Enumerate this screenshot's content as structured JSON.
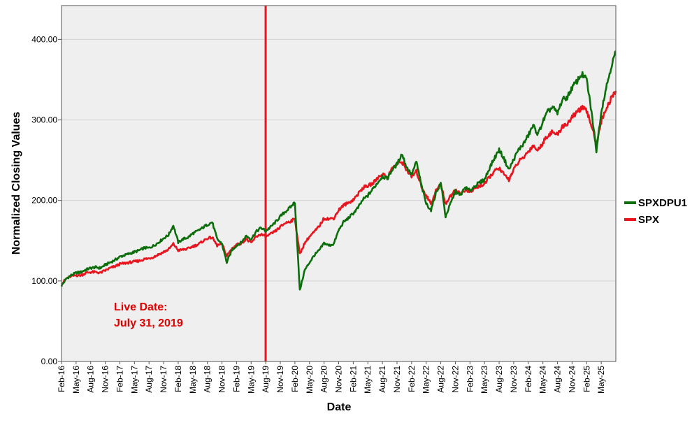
{
  "chart_data": {
    "type": "line",
    "xlabel": "Date",
    "ylabel": "Normalized Closing Values",
    "ylim": [
      0,
      442
    ],
    "y_ticks": [
      0,
      100,
      200,
      300,
      400
    ],
    "y_tick_labels": [
      "0.00",
      "100.00",
      "200.00",
      "300.00",
      "400.00"
    ],
    "x_tick_labels": [
      "Feb-16",
      "May-16",
      "Aug-16",
      "Nov-16",
      "Feb-17",
      "May-17",
      "Aug-17",
      "Nov-17",
      "Feb-18",
      "May-18",
      "Aug-18",
      "Nov-18",
      "Feb-19",
      "May-19",
      "Aug-19",
      "Nov-19",
      "Feb-20",
      "May-20",
      "Aug-20",
      "Nov-20",
      "Feb-21",
      "May-21",
      "Aug-21",
      "Nov-21",
      "Feb-22",
      "May-22",
      "Aug-22",
      "Nov-22",
      "Feb-23",
      "May-23",
      "Aug-23",
      "Nov-23",
      "Feb-24",
      "May-24",
      "Aug-24",
      "Nov-24",
      "Feb-25",
      "May-25"
    ],
    "x_start": "2016-02",
    "x_end": "2025-08",
    "grid": "horizontal",
    "legend_position": "right",
    "plot_background": "#efefef",
    "series": [
      {
        "name": "SPXDPU1",
        "color": "#0b6e0b",
        "points": [
          [
            "2016-02",
            94
          ],
          [
            "2016-03",
            103
          ],
          [
            "2016-04",
            107
          ],
          [
            "2016-05",
            110
          ],
          [
            "2016-06",
            111
          ],
          [
            "2016-07",
            114
          ],
          [
            "2016-08",
            116
          ],
          [
            "2016-09",
            117
          ],
          [
            "2016-10",
            116
          ],
          [
            "2016-11",
            120
          ],
          [
            "2016-12",
            123
          ],
          [
            "2017-01",
            126
          ],
          [
            "2017-02",
            130
          ],
          [
            "2017-03",
            132
          ],
          [
            "2017-04",
            134
          ],
          [
            "2017-05",
            136
          ],
          [
            "2017-06",
            138
          ],
          [
            "2017-07",
            141
          ],
          [
            "2017-08",
            141
          ],
          [
            "2017-09",
            144
          ],
          [
            "2017-10",
            148
          ],
          [
            "2017-11",
            153
          ],
          [
            "2017-12",
            157
          ],
          [
            "2018-01",
            169
          ],
          [
            "2018-02",
            148
          ],
          [
            "2018-03",
            152
          ],
          [
            "2018-04",
            154
          ],
          [
            "2018-05",
            159
          ],
          [
            "2018-06",
            162
          ],
          [
            "2018-07",
            166
          ],
          [
            "2018-08",
            170
          ],
          [
            "2018-09",
            173
          ],
          [
            "2018-10",
            152
          ],
          [
            "2018-11",
            146
          ],
          [
            "2018-12",
            123
          ],
          [
            "2019-01",
            138
          ],
          [
            "2019-02",
            144
          ],
          [
            "2019-03",
            148
          ],
          [
            "2019-04",
            156
          ],
          [
            "2019-05",
            152
          ],
          [
            "2019-06",
            161
          ],
          [
            "2019-07",
            166
          ],
          [
            "2019-08",
            162
          ],
          [
            "2019-09",
            167
          ],
          [
            "2019-10",
            173
          ],
          [
            "2019-11",
            180
          ],
          [
            "2019-12",
            186
          ],
          [
            "2020-01",
            191
          ],
          [
            "2020-02",
            198
          ],
          [
            "2020-03",
            88
          ],
          [
            "2020-04",
            113
          ],
          [
            "2020-05",
            123
          ],
          [
            "2020-06",
            132
          ],
          [
            "2020-07",
            138
          ],
          [
            "2020-08",
            147
          ],
          [
            "2020-09",
            144
          ],
          [
            "2020-10",
            146
          ],
          [
            "2020-11",
            163
          ],
          [
            "2020-12",
            173
          ],
          [
            "2021-01",
            178
          ],
          [
            "2021-02",
            184
          ],
          [
            "2021-03",
            191
          ],
          [
            "2021-04",
            201
          ],
          [
            "2021-05",
            206
          ],
          [
            "2021-06",
            214
          ],
          [
            "2021-07",
            222
          ],
          [
            "2021-08",
            230
          ],
          [
            "2021-09",
            227
          ],
          [
            "2021-10",
            238
          ],
          [
            "2021-11",
            245
          ],
          [
            "2021-12",
            258
          ],
          [
            "2022-01",
            241
          ],
          [
            "2022-02",
            232
          ],
          [
            "2022-03",
            248
          ],
          [
            "2022-04",
            219
          ],
          [
            "2022-05",
            196
          ],
          [
            "2022-06",
            188
          ],
          [
            "2022-07",
            209
          ],
          [
            "2022-08",
            222
          ],
          [
            "2022-09",
            180
          ],
          [
            "2022-10",
            196
          ],
          [
            "2022-11",
            211
          ],
          [
            "2022-12",
            206
          ],
          [
            "2023-01",
            216
          ],
          [
            "2023-02",
            212
          ],
          [
            "2023-03",
            218
          ],
          [
            "2023-04",
            222
          ],
          [
            "2023-05",
            226
          ],
          [
            "2023-06",
            240
          ],
          [
            "2023-07",
            252
          ],
          [
            "2023-08",
            263
          ],
          [
            "2023-09",
            252
          ],
          [
            "2023-10",
            238
          ],
          [
            "2023-11",
            251
          ],
          [
            "2023-12",
            263
          ],
          [
            "2024-01",
            270
          ],
          [
            "2024-02",
            281
          ],
          [
            "2024-03",
            293
          ],
          [
            "2024-04",
            282
          ],
          [
            "2024-05",
            298
          ],
          [
            "2024-06",
            310
          ],
          [
            "2024-07",
            316
          ],
          [
            "2024-08",
            308
          ],
          [
            "2024-09",
            325
          ],
          [
            "2024-10",
            328
          ],
          [
            "2024-11",
            340
          ],
          [
            "2024-12",
            348
          ],
          [
            "2025-01",
            357
          ],
          [
            "2025-02",
            350
          ],
          [
            "2025-03",
            310
          ],
          [
            "2025-04",
            262
          ],
          [
            "2025-05",
            310
          ],
          [
            "2025-06",
            340
          ],
          [
            "2025-07",
            365
          ],
          [
            "2025-08",
            385
          ]
        ]
      },
      {
        "name": "SPX",
        "color": "#e8141e",
        "points": [
          [
            "2016-02",
            96
          ],
          [
            "2016-03",
            103
          ],
          [
            "2016-04",
            106
          ],
          [
            "2016-05",
            107
          ],
          [
            "2016-06",
            107
          ],
          [
            "2016-07",
            110
          ],
          [
            "2016-08",
            111
          ],
          [
            "2016-09",
            111
          ],
          [
            "2016-10",
            110
          ],
          [
            "2016-11",
            113
          ],
          [
            "2016-12",
            116
          ],
          [
            "2017-01",
            118
          ],
          [
            "2017-02",
            121
          ],
          [
            "2017-03",
            122
          ],
          [
            "2017-04",
            123
          ],
          [
            "2017-05",
            124
          ],
          [
            "2017-06",
            125
          ],
          [
            "2017-07",
            127
          ],
          [
            "2017-08",
            128
          ],
          [
            "2017-09",
            130
          ],
          [
            "2017-10",
            133
          ],
          [
            "2017-11",
            136
          ],
          [
            "2017-12",
            139
          ],
          [
            "2018-01",
            146
          ],
          [
            "2018-02",
            138
          ],
          [
            "2018-03",
            139
          ],
          [
            "2018-04",
            140
          ],
          [
            "2018-05",
            143
          ],
          [
            "2018-06",
            145
          ],
          [
            "2018-07",
            149
          ],
          [
            "2018-08",
            153
          ],
          [
            "2018-09",
            154
          ],
          [
            "2018-10",
            144
          ],
          [
            "2018-11",
            146
          ],
          [
            "2018-12",
            131
          ],
          [
            "2019-01",
            140
          ],
          [
            "2019-02",
            145
          ],
          [
            "2019-03",
            147
          ],
          [
            "2019-04",
            152
          ],
          [
            "2019-05",
            147
          ],
          [
            "2019-06",
            155
          ],
          [
            "2019-07",
            158
          ],
          [
            "2019-08",
            155
          ],
          [
            "2019-09",
            158
          ],
          [
            "2019-10",
            162
          ],
          [
            "2019-11",
            167
          ],
          [
            "2019-12",
            172
          ],
          [
            "2020-01",
            174
          ],
          [
            "2020-02",
            177
          ],
          [
            "2020-03",
            133
          ],
          [
            "2020-04",
            147
          ],
          [
            "2020-05",
            155
          ],
          [
            "2020-06",
            161
          ],
          [
            "2020-07",
            168
          ],
          [
            "2020-08",
            178
          ],
          [
            "2020-09",
            177
          ],
          [
            "2020-10",
            178
          ],
          [
            "2020-11",
            188
          ],
          [
            "2020-12",
            194
          ],
          [
            "2021-01",
            197
          ],
          [
            "2021-02",
            201
          ],
          [
            "2021-03",
            208
          ],
          [
            "2021-04",
            216
          ],
          [
            "2021-05",
            218
          ],
          [
            "2021-06",
            221
          ],
          [
            "2021-07",
            228
          ],
          [
            "2021-08",
            233
          ],
          [
            "2021-09",
            228
          ],
          [
            "2021-10",
            240
          ],
          [
            "2021-11",
            245
          ],
          [
            "2021-12",
            248
          ],
          [
            "2022-01",
            238
          ],
          [
            "2022-02",
            229
          ],
          [
            "2022-03",
            236
          ],
          [
            "2022-04",
            218
          ],
          [
            "2022-05",
            206
          ],
          [
            "2022-06",
            196
          ],
          [
            "2022-07",
            212
          ],
          [
            "2022-08",
            220
          ],
          [
            "2022-09",
            196
          ],
          [
            "2022-10",
            205
          ],
          [
            "2022-11",
            214
          ],
          [
            "2022-12",
            208
          ],
          [
            "2023-01",
            213
          ],
          [
            "2023-02",
            210
          ],
          [
            "2023-03",
            215
          ],
          [
            "2023-04",
            218
          ],
          [
            "2023-05",
            220
          ],
          [
            "2023-06",
            229
          ],
          [
            "2023-07",
            236
          ],
          [
            "2023-08",
            240
          ],
          [
            "2023-09",
            232
          ],
          [
            "2023-10",
            226
          ],
          [
            "2023-11",
            238
          ],
          [
            "2023-12",
            248
          ],
          [
            "2024-01",
            253
          ],
          [
            "2024-02",
            261
          ],
          [
            "2024-03",
            268
          ],
          [
            "2024-04",
            262
          ],
          [
            "2024-05",
            272
          ],
          [
            "2024-06",
            281
          ],
          [
            "2024-07",
            285
          ],
          [
            "2024-08",
            281
          ],
          [
            "2024-09",
            292
          ],
          [
            "2024-10",
            295
          ],
          [
            "2024-11",
            303
          ],
          [
            "2024-12",
            310
          ],
          [
            "2025-01",
            315
          ],
          [
            "2025-02",
            311
          ],
          [
            "2025-03",
            293
          ],
          [
            "2025-04",
            270
          ],
          [
            "2025-05",
            298
          ],
          [
            "2025-06",
            314
          ],
          [
            "2025-07",
            326
          ],
          [
            "2025-08",
            336
          ]
        ]
      }
    ],
    "annotation": {
      "date": "2019-07-31",
      "line_color": "#e8141e",
      "line1": "Live Date:",
      "line2": "July 31, 2019",
      "text_color": "#e00000"
    }
  }
}
